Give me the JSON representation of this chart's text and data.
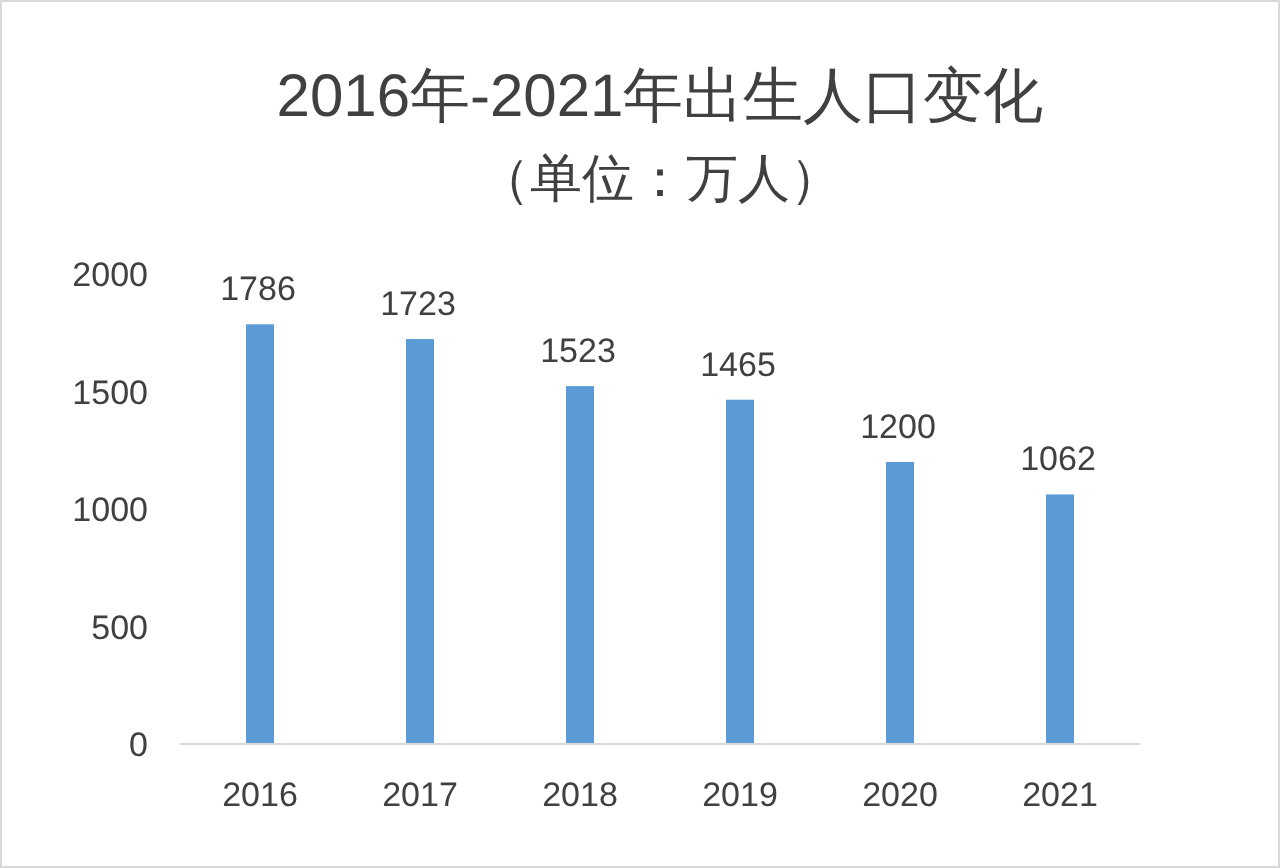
{
  "chart_data": {
    "type": "bar",
    "title": "2016年-2021年出生人口变化",
    "subtitle": "（单位：万人）",
    "categories": [
      "2016",
      "2017",
      "2018",
      "2019",
      "2020",
      "2021"
    ],
    "values": [
      1786,
      1723,
      1523,
      1465,
      1200,
      1062
    ],
    "color": "#5b9bd5",
    "ylim": [
      0,
      2000
    ],
    "yticks": [
      0,
      500,
      1000,
      1500,
      2000
    ],
    "data_labels": true
  }
}
